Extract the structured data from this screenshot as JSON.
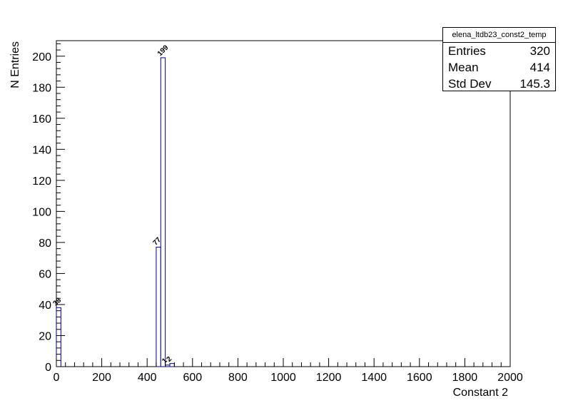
{
  "stats": {
    "title": "elena_ltdb23_const2_temp",
    "rows": [
      {
        "label": "Entries",
        "value": "320"
      },
      {
        "label": "Mean",
        "value": "414"
      },
      {
        "label": "Std Dev",
        "value": "145.3"
      }
    ]
  },
  "chart_data": {
    "type": "bar",
    "title": "",
    "xlabel": "Constant 2",
    "ylabel": "N Entries",
    "xlim": [
      0,
      2000
    ],
    "ylim": [
      0,
      210
    ],
    "xticks": [
      0,
      200,
      400,
      600,
      800,
      1000,
      1200,
      1400,
      1600,
      1800,
      2000
    ],
    "yticks": [
      0,
      20,
      40,
      60,
      80,
      100,
      120,
      140,
      160,
      180,
      200
    ],
    "bin_width": 20,
    "grid": false,
    "bins": [
      {
        "x0": 0,
        "x1": 20,
        "value": 38,
        "label": "38"
      },
      {
        "x0": 440,
        "x1": 460,
        "value": 77,
        "label": "77"
      },
      {
        "x0": 460,
        "x1": 480,
        "value": 199,
        "label": "199"
      },
      {
        "x0": 480,
        "x1": 500,
        "value": 1,
        "label": "1"
      },
      {
        "x0": 500,
        "x1": 520,
        "value": 2,
        "label": "2"
      }
    ],
    "line_color": "#00007f"
  }
}
